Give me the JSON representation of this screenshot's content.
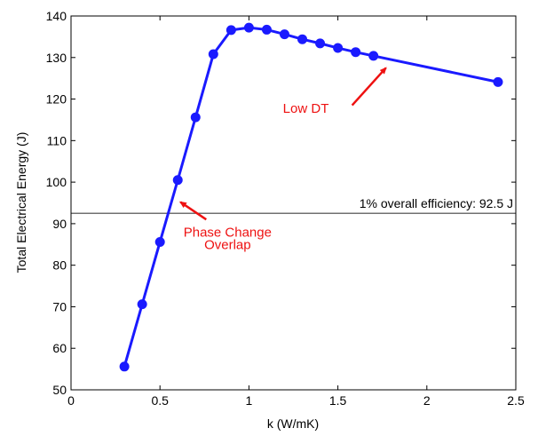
{
  "chart_data": {
    "type": "line",
    "title": "",
    "xlabel": "k (W/mK)",
    "ylabel": "Total Electrical Energy (J)",
    "xlim": [
      0,
      2.5
    ],
    "ylim": [
      50,
      140
    ],
    "xticks": [
      0,
      0.5,
      1,
      1.5,
      2,
      2.5
    ],
    "xtick_labels": [
      "0",
      "0.5",
      "1",
      "1.5",
      "2",
      "2.5"
    ],
    "yticks": [
      50,
      60,
      70,
      80,
      90,
      100,
      110,
      120,
      130,
      140
    ],
    "ytick_labels": [
      "50",
      "60",
      "70",
      "80",
      "90",
      "100",
      "110",
      "120",
      "130",
      "140"
    ],
    "grid": false,
    "series": [
      {
        "color": "#1a1aff",
        "marker": "circle",
        "x": [
          0.3,
          0.4,
          0.5,
          0.6,
          0.7,
          0.8,
          0.9,
          1.0,
          1.1,
          1.2,
          1.3,
          1.4,
          1.5,
          1.6,
          1.7,
          2.4
        ],
        "y": [
          55.6,
          70.6,
          85.6,
          100.5,
          115.6,
          130.8,
          136.6,
          137.2,
          136.7,
          135.6,
          134.4,
          133.4,
          132.3,
          131.3,
          130.4,
          124.1
        ]
      }
    ],
    "reference_line": {
      "y": 92.5,
      "label": "1% overall efficiency: 92.5 J",
      "color": "#404040"
    },
    "annotations": [
      {
        "lines": [
          "Low DT"
        ],
        "color": "#ee1111",
        "text_x": 1.32,
        "text_y": 116.7,
        "arrow_from": [
          1.58,
          118.5
        ],
        "arrow_to": [
          1.77,
          127.5
        ]
      },
      {
        "lines": [
          "Phase Change",
          "Overlap"
        ],
        "color": "#ee1111",
        "text_x": 0.88,
        "text_y": 86.9,
        "line_spacing": 3.0,
        "arrow_from": [
          0.76,
          91.0
        ],
        "arrow_to": [
          0.615,
          95.2
        ]
      }
    ]
  }
}
